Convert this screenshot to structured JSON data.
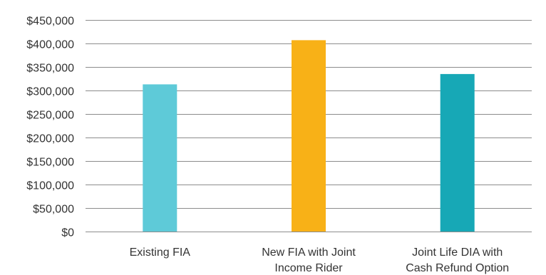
{
  "chart_data": {
    "type": "bar",
    "title": "",
    "xlabel": "",
    "ylabel": "",
    "ylim": [
      0,
      450000
    ],
    "y_ticks": [
      {
        "value": 0,
        "label": "$0"
      },
      {
        "value": 50000,
        "label": "$50,000"
      },
      {
        "value": 100000,
        "label": "$100,000"
      },
      {
        "value": 150000,
        "label": "$150,000"
      },
      {
        "value": 200000,
        "label": "$200,000"
      },
      {
        "value": 250000,
        "label": "$250,000"
      },
      {
        "value": 300000,
        "label": "$300,000"
      },
      {
        "value": 350000,
        "label": "$350,000"
      },
      {
        "value": 400000,
        "label": "$400,000"
      },
      {
        "value": 450000,
        "label": "$450,000"
      }
    ],
    "grid": true,
    "legend": "none",
    "categories": [
      {
        "label_lines": [
          "Existing FIA"
        ],
        "value": 313000,
        "color": "#5ECAD8"
      },
      {
        "label_lines": [
          "New FIA with Joint",
          "Income Rider"
        ],
        "value": 407000,
        "color": "#F8B117"
      },
      {
        "label_lines": [
          "Joint Life DIA with",
          "Cash Refund Option"
        ],
        "value": 335000,
        "color": "#17A8B6"
      }
    ]
  }
}
